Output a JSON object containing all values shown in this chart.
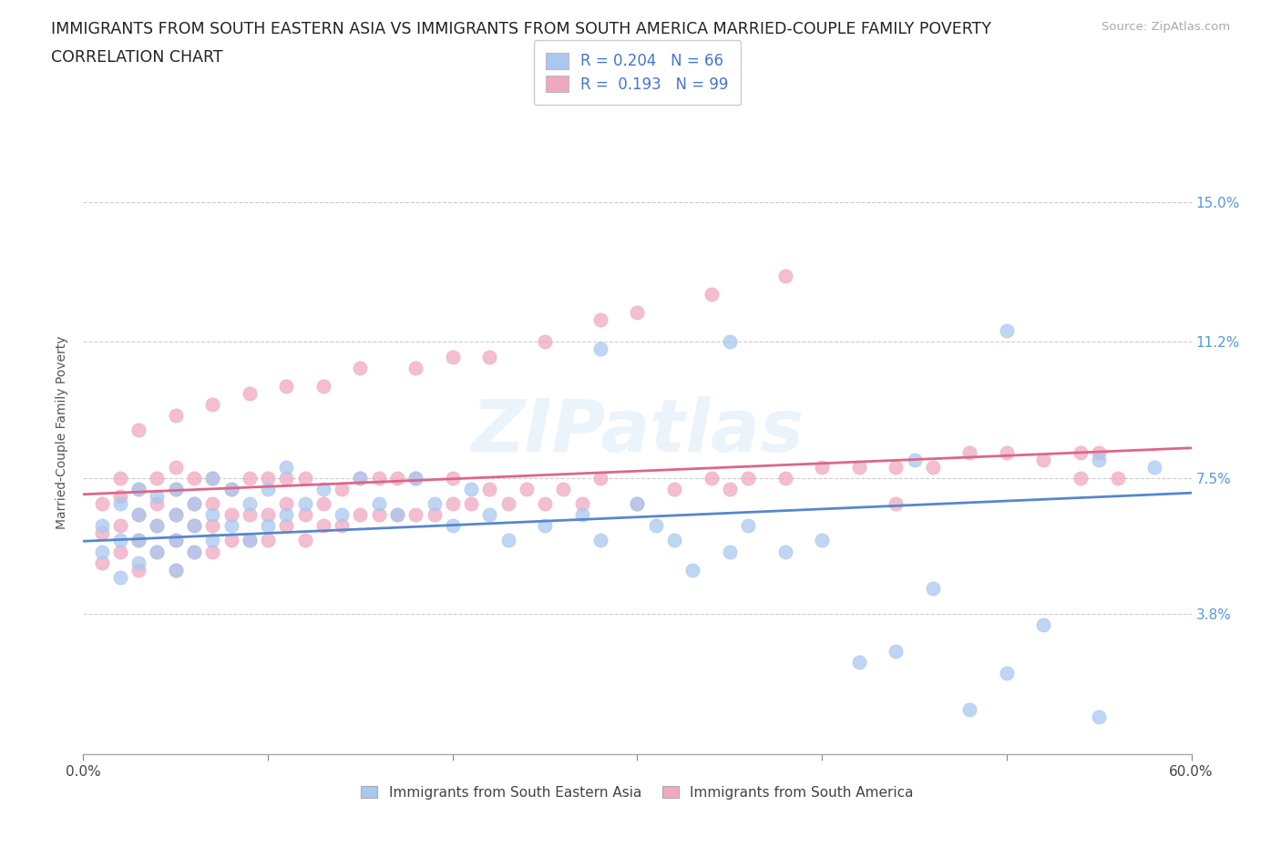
{
  "title_line1": "IMMIGRANTS FROM SOUTH EASTERN ASIA VS IMMIGRANTS FROM SOUTH AMERICA MARRIED-COUPLE FAMILY POVERTY",
  "title_line2": "CORRELATION CHART",
  "source": "Source: ZipAtlas.com",
  "ylabel": "Married-Couple Family Poverty",
  "xlim": [
    0.0,
    0.6
  ],
  "ylim": [
    0.0,
    0.175
  ],
  "xtick_positions": [
    0.0,
    0.1,
    0.2,
    0.3,
    0.4,
    0.5,
    0.6
  ],
  "xticklabels": [
    "0.0%",
    "",
    "",
    "",
    "",
    "",
    "60.0%"
  ],
  "ytick_positions": [
    0.038,
    0.075,
    0.112,
    0.15
  ],
  "ytick_labels": [
    "3.8%",
    "7.5%",
    "11.2%",
    "15.0%"
  ],
  "R_blue": 0.204,
  "N_blue": 66,
  "R_pink": 0.193,
  "N_pink": 99,
  "color_blue": "#a8c8f0",
  "color_pink": "#f0a8c0",
  "line_color_blue": "#5588cc",
  "line_color_pink": "#dd6688",
  "background_color": "#ffffff",
  "watermark": "ZIPatlas",
  "legend_label_blue": "R = 0.204   N = 66",
  "legend_label_pink": "R =  0.193   N = 99",
  "bottom_legend_blue": "Immigrants from South Eastern Asia",
  "bottom_legend_pink": "Immigrants from South America",
  "blue_x": [
    0.01,
    0.01,
    0.02,
    0.02,
    0.02,
    0.03,
    0.03,
    0.03,
    0.03,
    0.04,
    0.04,
    0.04,
    0.05,
    0.05,
    0.05,
    0.05,
    0.06,
    0.06,
    0.06,
    0.07,
    0.07,
    0.07,
    0.08,
    0.08,
    0.09,
    0.09,
    0.1,
    0.1,
    0.11,
    0.11,
    0.12,
    0.13,
    0.14,
    0.15,
    0.16,
    0.17,
    0.18,
    0.19,
    0.2,
    0.21,
    0.22,
    0.23,
    0.25,
    0.27,
    0.28,
    0.3,
    0.31,
    0.32,
    0.33,
    0.35,
    0.36,
    0.38,
    0.4,
    0.42,
    0.44,
    0.46,
    0.48,
    0.5,
    0.52,
    0.55,
    0.28,
    0.35,
    0.45,
    0.5,
    0.55,
    0.58
  ],
  "blue_y": [
    0.055,
    0.062,
    0.048,
    0.058,
    0.068,
    0.052,
    0.058,
    0.065,
    0.072,
    0.055,
    0.062,
    0.07,
    0.05,
    0.058,
    0.065,
    0.072,
    0.055,
    0.062,
    0.068,
    0.058,
    0.065,
    0.075,
    0.062,
    0.072,
    0.058,
    0.068,
    0.062,
    0.072,
    0.065,
    0.078,
    0.068,
    0.072,
    0.065,
    0.075,
    0.068,
    0.065,
    0.075,
    0.068,
    0.062,
    0.072,
    0.065,
    0.058,
    0.062,
    0.065,
    0.058,
    0.068,
    0.062,
    0.058,
    0.05,
    0.055,
    0.062,
    0.055,
    0.058,
    0.025,
    0.028,
    0.045,
    0.012,
    0.022,
    0.035,
    0.01,
    0.11,
    0.112,
    0.08,
    0.115,
    0.08,
    0.078
  ],
  "pink_x": [
    0.01,
    0.01,
    0.01,
    0.02,
    0.02,
    0.02,
    0.02,
    0.03,
    0.03,
    0.03,
    0.03,
    0.04,
    0.04,
    0.04,
    0.04,
    0.05,
    0.05,
    0.05,
    0.05,
    0.05,
    0.06,
    0.06,
    0.06,
    0.06,
    0.07,
    0.07,
    0.07,
    0.07,
    0.08,
    0.08,
    0.08,
    0.09,
    0.09,
    0.09,
    0.1,
    0.1,
    0.1,
    0.11,
    0.11,
    0.11,
    0.12,
    0.12,
    0.12,
    0.13,
    0.13,
    0.14,
    0.14,
    0.15,
    0.15,
    0.16,
    0.16,
    0.17,
    0.17,
    0.18,
    0.18,
    0.19,
    0.2,
    0.2,
    0.21,
    0.22,
    0.23,
    0.24,
    0.25,
    0.26,
    0.27,
    0.28,
    0.3,
    0.32,
    0.34,
    0.35,
    0.36,
    0.38,
    0.4,
    0.42,
    0.44,
    0.46,
    0.48,
    0.5,
    0.52,
    0.54,
    0.55,
    0.56,
    0.03,
    0.05,
    0.07,
    0.09,
    0.11,
    0.13,
    0.15,
    0.18,
    0.2,
    0.22,
    0.25,
    0.28,
    0.3,
    0.34,
    0.38,
    0.44,
    0.54
  ],
  "pink_y": [
    0.052,
    0.06,
    0.068,
    0.055,
    0.062,
    0.07,
    0.075,
    0.05,
    0.058,
    0.065,
    0.072,
    0.055,
    0.062,
    0.068,
    0.075,
    0.05,
    0.058,
    0.065,
    0.072,
    0.078,
    0.055,
    0.062,
    0.068,
    0.075,
    0.055,
    0.062,
    0.068,
    0.075,
    0.058,
    0.065,
    0.072,
    0.058,
    0.065,
    0.075,
    0.058,
    0.065,
    0.075,
    0.062,
    0.068,
    0.075,
    0.058,
    0.065,
    0.075,
    0.062,
    0.068,
    0.062,
    0.072,
    0.065,
    0.075,
    0.065,
    0.075,
    0.065,
    0.075,
    0.065,
    0.075,
    0.065,
    0.068,
    0.075,
    0.068,
    0.072,
    0.068,
    0.072,
    0.068,
    0.072,
    0.068,
    0.075,
    0.068,
    0.072,
    0.075,
    0.072,
    0.075,
    0.075,
    0.078,
    0.078,
    0.078,
    0.078,
    0.082,
    0.082,
    0.08,
    0.082,
    0.082,
    0.075,
    0.088,
    0.092,
    0.095,
    0.098,
    0.1,
    0.1,
    0.105,
    0.105,
    0.108,
    0.108,
    0.112,
    0.118,
    0.12,
    0.125,
    0.13,
    0.068,
    0.075
  ]
}
